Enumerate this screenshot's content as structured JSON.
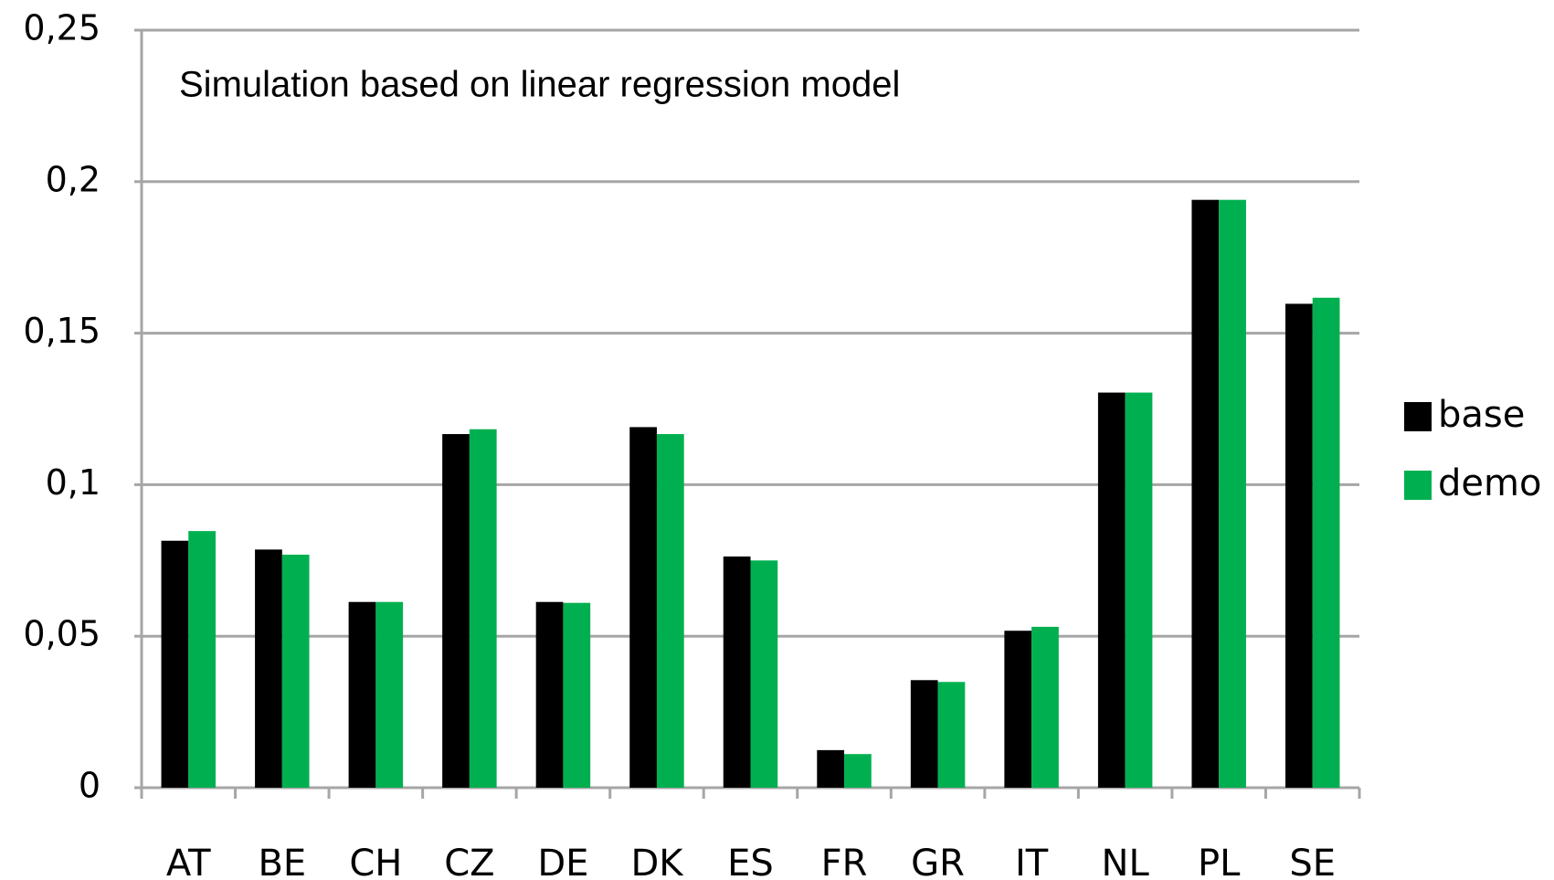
{
  "chart_data": {
    "type": "bar",
    "annotation": "Simulation based on linear regression model",
    "categories": [
      "AT",
      "BE",
      "CH",
      "CZ",
      "DE",
      "DK",
      "ES",
      "FR",
      "GR",
      "IT",
      "NL",
      "PL",
      "SE"
    ],
    "series": [
      {
        "name": "base",
        "color": "#000000",
        "values": [
          0.0815,
          0.0786,
          0.0613,
          0.1167,
          0.0613,
          0.119,
          0.0763,
          0.0124,
          0.0355,
          0.0518,
          0.1304,
          0.194,
          0.1597
        ]
      },
      {
        "name": "demo",
        "color": "#00b050",
        "values": [
          0.0847,
          0.0769,
          0.0613,
          0.1183,
          0.061,
          0.1167,
          0.075,
          0.0111,
          0.0349,
          0.0531,
          0.1304,
          0.194,
          0.1617
        ]
      }
    ],
    "ylim": [
      0,
      0.25
    ],
    "yticks": [
      0,
      {
        "value": 0.05,
        "label": "0,05"
      },
      {
        "value": 0.1,
        "label": "0,1"
      },
      {
        "value": 0.15,
        "label": "0,15"
      },
      {
        "value": 0.2,
        "label": "0,2"
      },
      {
        "value": 0.25,
        "label": "0,25"
      }
    ],
    "grid": true,
    "legend": "right"
  }
}
